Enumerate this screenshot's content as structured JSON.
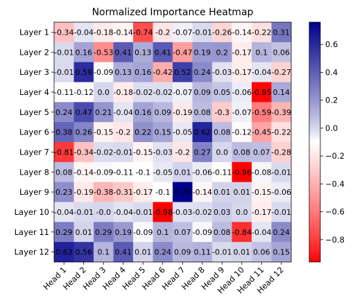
{
  "chart_data": {
    "type": "heatmap",
    "title": "Normalized Importance Heatmap",
    "xlabel": "",
    "ylabel": "",
    "colormap": "bwr_r",
    "colormap_colors": {
      "low": "#ff0000",
      "mid": "#ffffff",
      "high": "#00008b"
    },
    "vmin": -0.96,
    "vmax": 0.76,
    "colorbar_ticks": [
      0.6,
      0.4,
      0.2,
      0.0,
      -0.2,
      -0.4,
      -0.6,
      -0.8
    ],
    "colorbar_tick_labels": [
      "0.6",
      "0.4",
      "0.2",
      "0.0",
      "−0.2",
      "−0.4",
      "−0.6",
      "−0.8"
    ],
    "x_categories": [
      "Head 1",
      "Head 2",
      "Head 3",
      "Head 4",
      "Head 5",
      "Head 6",
      "Head 7",
      "Head 8",
      "Head 9",
      "Head 10",
      "Head 11",
      "Head 12"
    ],
    "y_categories": [
      "Layer 1",
      "Layer 2",
      "Layer 3",
      "Layer 4",
      "Layer 5",
      "Layer 6",
      "Layer 7",
      "Layer 8",
      "Layer 9",
      "Layer 10",
      "Layer 11",
      "Layer 12"
    ],
    "values": [
      [
        -0.34,
        -0.04,
        -0.18,
        -0.14,
        -0.74,
        -0.2,
        -0.07,
        -0.01,
        -0.26,
        -0.14,
        -0.22,
        0.31
      ],
      [
        -0.01,
        0.16,
        -0.53,
        0.41,
        0.13,
        0.41,
        -0.47,
        0.19,
        0.2,
        -0.17,
        0.1,
        0.06
      ],
      [
        -0.01,
        0.59,
        -0.09,
        0.13,
        0.16,
        -0.42,
        0.52,
        0.24,
        -0.03,
        -0.17,
        -0.04,
        -0.27
      ],
      [
        -0.11,
        -0.12,
        0.0,
        -0.18,
        -0.02,
        -0.02,
        -0.07,
        0.09,
        0.05,
        -0.06,
        -0.95,
        0.14
      ],
      [
        0.24,
        0.47,
        0.21,
        -0.04,
        0.16,
        0.09,
        -0.19,
        0.08,
        -0.3,
        -0.07,
        -0.59,
        -0.39
      ],
      [
        0.38,
        0.26,
        -0.15,
        -0.2,
        0.22,
        0.15,
        -0.05,
        0.62,
        0.08,
        -0.12,
        -0.45,
        -0.22
      ],
      [
        -0.81,
        -0.34,
        -0.02,
        -0.01,
        -0.15,
        -0.03,
        -0.2,
        0.27,
        0.0,
        0.08,
        0.07,
        -0.28
      ],
      [
        0.08,
        -0.14,
        -0.09,
        -0.11,
        -0.1,
        -0.05,
        0.01,
        -0.06,
        -0.11,
        -0.96,
        -0.08,
        -0.01
      ],
      [
        0.23,
        -0.19,
        -0.38,
        -0.31,
        -0.17,
        -0.1,
        0.76,
        -0.14,
        0.01,
        0.01,
        -0.15,
        -0.06
      ],
      [
        -0.04,
        -0.01,
        -0.0,
        -0.04,
        -0.01,
        -0.98,
        -0.03,
        -0.02,
        0.03,
        0.0,
        -0.17,
        -0.01
      ],
      [
        0.29,
        0.01,
        0.29,
        0.19,
        -0.09,
        0.1,
        0.07,
        -0.09,
        0.08,
        -0.84,
        -0.04,
        0.24
      ],
      [
        0.63,
        0.56,
        0.1,
        0.41,
        0.01,
        0.24,
        0.09,
        0.11,
        -0.01,
        0.01,
        0.06,
        0.15
      ]
    ],
    "cell_labels": [
      [
        "-0.34",
        "-0.04",
        "-0.18",
        "-0.14",
        "-0.74",
        "-0.2",
        "-0.07",
        "-0.01",
        "-0.26",
        "-0.14",
        "-0.22",
        "0.31"
      ],
      [
        "-0.01",
        "0.16",
        "-0.53",
        "0.41",
        "0.13",
        "0.41",
        "-0.47",
        "0.19",
        "0.2",
        "-0.17",
        "0.1",
        "0.06"
      ],
      [
        "-0.01",
        "0.59",
        "-0.09",
        "0.13",
        "0.16",
        "-0.42",
        "0.52",
        "0.24",
        "-0.03",
        "-0.17",
        "-0.04",
        "-0.27"
      ],
      [
        "-0.11",
        "-0.12",
        "0.0",
        "-0.18",
        "-0.02",
        "-0.02",
        "-0.07",
        "0.09",
        "0.05",
        "-0.06",
        "-0.95",
        "0.14"
      ],
      [
        "0.24",
        "0.47",
        "0.21",
        "-0.04",
        "0.16",
        "0.09",
        "-0.19",
        "0.08",
        "-0.3",
        "-0.07",
        "-0.59",
        "-0.39"
      ],
      [
        "0.38",
        "0.26",
        "-0.15",
        "-0.2",
        "0.22",
        "0.15",
        "-0.05",
        "0.62",
        "0.08",
        "-0.12",
        "-0.45",
        "-0.22"
      ],
      [
        "-0.81",
        "-0.34",
        "-0.02",
        "-0.01",
        "-0.15",
        "-0.03",
        "-0.2",
        "0.27",
        "0.0",
        "0.08",
        "0.07",
        "-0.28"
      ],
      [
        "0.08",
        "-0.14",
        "-0.09",
        "-0.11",
        "-0.1",
        "-0.05",
        "0.01",
        "-0.06",
        "-0.11",
        "-0.96",
        "-0.08",
        "-0.01"
      ],
      [
        "0.23",
        "-0.19",
        "-0.38",
        "-0.31",
        "-0.17",
        "-0.1",
        "0.76",
        "-0.14",
        "0.01",
        "0.01",
        "-0.15",
        "-0.06"
      ],
      [
        "-0.04",
        "-0.01",
        "-0.0",
        "-0.04",
        "-0.01",
        "-0.98",
        "-0.03",
        "-0.02",
        "0.03",
        "0.0",
        "-0.17",
        "-0.01"
      ],
      [
        "0.29",
        "0.01",
        "0.29",
        "0.19",
        "-0.09",
        "0.1",
        "0.07",
        "-0.09",
        "0.08",
        "-0.84",
        "-0.04",
        "0.24"
      ],
      [
        "0.63",
        "0.56",
        "0.1",
        "0.41",
        "0.01",
        "0.24",
        "0.09",
        "0.11",
        "-0.01",
        "0.01",
        "0.06",
        "0.15"
      ]
    ],
    "grid": false,
    "legend": "colorbar-right"
  }
}
